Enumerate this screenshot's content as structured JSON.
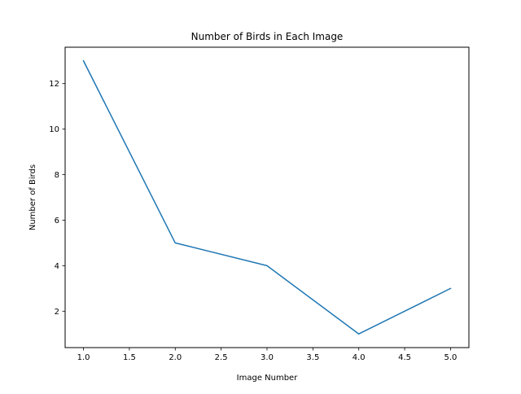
{
  "chart_data": {
    "type": "line",
    "title": "Number of Birds in Each Image",
    "xlabel": "Image Number",
    "ylabel": "Number of Birds",
    "x": [
      1,
      2,
      3,
      4,
      5
    ],
    "series": [
      {
        "values": [
          13,
          5,
          4,
          1,
          3
        ],
        "color": "#1f77b4"
      }
    ],
    "xlim": [
      0.8,
      5.2
    ],
    "ylim": [
      0.4,
      13.6
    ],
    "xticks": [
      1.0,
      1.5,
      2.0,
      2.5,
      3.0,
      3.5,
      4.0,
      4.5,
      5.0
    ],
    "xtick_labels": [
      "1.0",
      "1.5",
      "2.0",
      "2.5",
      "3.0",
      "3.5",
      "4.0",
      "4.5",
      "5.0"
    ],
    "yticks": [
      2,
      4,
      6,
      8,
      10,
      12
    ],
    "ytick_labels": [
      "2",
      "4",
      "6",
      "8",
      "10",
      "12"
    ],
    "grid": false,
    "legend": false
  }
}
